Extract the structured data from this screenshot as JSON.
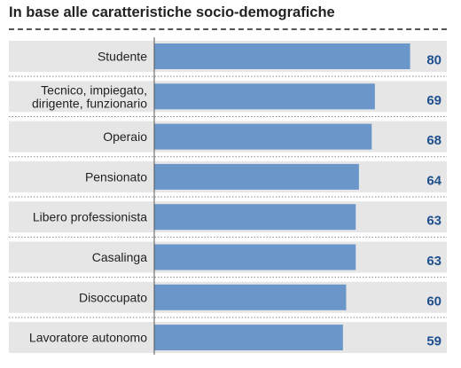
{
  "chart_data": {
    "type": "bar",
    "orientation": "horizontal",
    "title": "In base alle caratteristiche socio-demografiche",
    "categories": [
      "Studente",
      "Tecnico, impiegato,\ndirigente, funzionario",
      "Operaio",
      "Pensionato",
      "Libero professionista",
      "Casalinga",
      "Disoccupato",
      "Lavoratore autonomo"
    ],
    "values": [
      80,
      69,
      68,
      64,
      63,
      63,
      60,
      59
    ],
    "xlim": [
      0,
      81.5
    ],
    "grid": false,
    "legend": "none",
    "colors": {
      "bar": "#6b96c9",
      "row_background": "#e6e6e6",
      "value_text": "#1f4f8f",
      "separator": "#888888",
      "axis": "#555555"
    }
  }
}
